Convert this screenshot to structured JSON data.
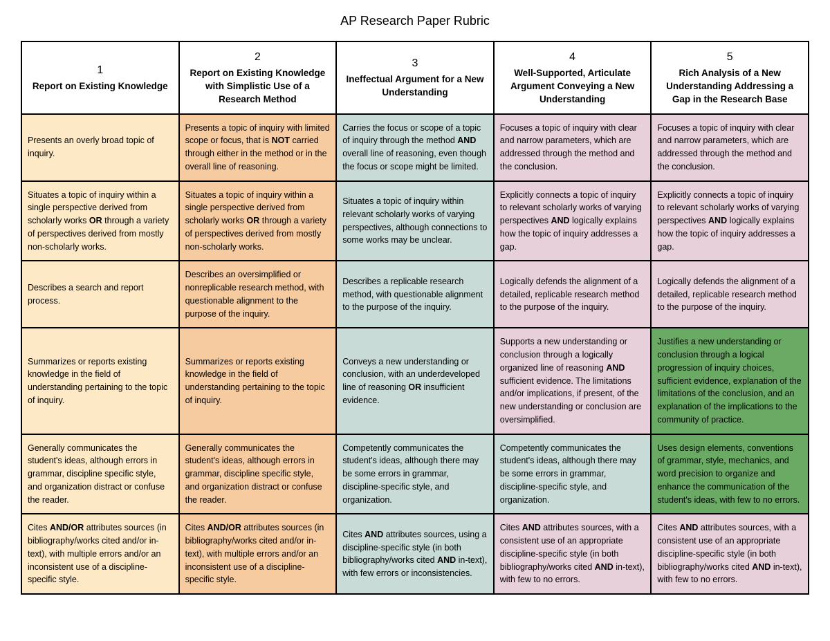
{
  "title": "AP Research Paper Rubric",
  "colors": {
    "col1": "#fde9c5",
    "col2": "#f7cba0",
    "col3": "#c8dbd7",
    "col4": "#e8d0db",
    "col5": "#e8d0db",
    "highlight": "#6aaa64",
    "header_bg": "#ffffff"
  },
  "columns": [
    {
      "num": "1",
      "title": "Report on Existing Knowledge"
    },
    {
      "num": "2",
      "title": "Report on Existing Knowledge with Simplistic Use of a Research Method"
    },
    {
      "num": "3",
      "title": "Ineffectual Argument for a New Understanding"
    },
    {
      "num": "4",
      "title": "Well-Supported, Articulate Argument Conveying a New Understanding"
    },
    {
      "num": "5",
      "title": "Rich Analysis of a New Understanding Addressing a Gap in the Research Base"
    }
  ],
  "rows": [
    [
      {
        "html": "Presents an overly broad topic of inquiry."
      },
      {
        "html": "Presents a topic of inquiry with limited scope or focus, that is <b>NOT</b> carried through either in the method or in the overall line of reasoning."
      },
      {
        "html": "Carries the focus or scope of a topic of inquiry through the method <b>AND</b> overall line of reasoning, even though the focus or scope might be limited."
      },
      {
        "html": "Focuses a topic of inquiry with clear and narrow parameters, which are addressed through the method and the conclusion."
      },
      {
        "html": "Focuses a topic of inquiry with clear and narrow parameters, which are addressed through the method and the conclusion."
      }
    ],
    [
      {
        "html": "Situates a topic of inquiry within a single perspective derived from scholarly works <b>OR</b> through a variety of perspectives derived from mostly non-scholarly works."
      },
      {
        "html": "Situates a topic of inquiry within a single perspective derived from scholarly works <b>OR</b> through a variety of perspectives derived from mostly non-scholarly works."
      },
      {
        "html": "Situates a topic of inquiry within relevant scholarly works of varying perspectives, although connections to some works may be unclear."
      },
      {
        "html": "Explicitly connects a topic of inquiry to relevant scholarly works of varying perspectives <b>AND</b> logically explains how the topic of inquiry addresses a gap."
      },
      {
        "html": "Explicitly connects a topic of inquiry to relevant scholarly works of varying perspectives <b>AND</b> logically explains how the topic of inquiry addresses a gap."
      }
    ],
    [
      {
        "html": "Describes a search and report process."
      },
      {
        "html": "Describes an oversimplified or nonreplicable research method, with questionable alignment to the purpose of the inquiry."
      },
      {
        "html": "Describes a replicable research method, with questionable alignment to the purpose of the inquiry."
      },
      {
        "html": "Logically defends the alignment of a detailed, replicable research method to the purpose of the inquiry."
      },
      {
        "html": "Logically defends the alignment of a detailed, replicable research method to the purpose of the inquiry."
      }
    ],
    [
      {
        "html": "Summarizes or reports existing knowledge in the field of understanding pertaining to the topic of inquiry."
      },
      {
        "html": "Summarizes or reports existing knowledge in the field of understanding pertaining to the topic of inquiry."
      },
      {
        "html": "Conveys a new understanding or conclusion, with an underdeveloped line of reasoning <b>OR</b> insufficient evidence."
      },
      {
        "html": "Supports a new understanding or conclusion through a logically organized line of reasoning <b>AND</b> sufficient evidence. The limitations and/or implications, if present, of the new understanding or conclusion are oversimplified."
      },
      {
        "html": "Justifies a new understanding or conclusion through a logical progression of inquiry choices, sufficient evidence, explanation of the limitations of the conclusion, and an explanation of the implications to the community of practice.",
        "highlight": true
      }
    ],
    [
      {
        "html": "Generally communicates the student's ideas, although errors in grammar, discipline specific style, and organization distract or confuse the reader."
      },
      {
        "html": "Generally communicates the student's ideas, although errors in grammar, discipline specific style, and organization distract or confuse the reader."
      },
      {
        "html": "Competently communicates the student's ideas, although there may be some errors in grammar, discipline-specific style, and organization."
      },
      {
        "html": "Competently communicates the student's ideas, although there may be some errors in grammar, discipline-specific style, and organization.",
        "col3_color": true
      },
      {
        "html": "Uses design elements, conventions of grammar, style, mechanics, and word precision to organize and enhance the communication of the student's ideas, with few to no errors.",
        "highlight": true
      }
    ],
    [
      {
        "html": "Cites <b>AND/OR</b> attributes sources (in bibliography/works cited and/or in-text), with multiple errors and/or an inconsistent use of a discipline-specific style."
      },
      {
        "html": "Cites <b>AND/OR</b> attributes sources (in bibliography/works cited and/or in-text), with multiple errors and/or an inconsistent use of a discipline-specific style."
      },
      {
        "html": "Cites <b>AND</b> attributes sources, using a discipline-specific style (in both bibliography/works cited <b>AND</b> in-text), with few errors or inconsistencies."
      },
      {
        "html": "Cites <b>AND</b> attributes sources, with a consistent use of an appropriate discipline-specific style (in both bibliography/works cited <b>AND</b> in-text), with few to no errors."
      },
      {
        "html": "Cites <b>AND</b> attributes sources, with a consistent use of an appropriate discipline-specific style (in both bibliography/works cited <b>AND</b> in-text), with few to no errors."
      }
    ]
  ]
}
